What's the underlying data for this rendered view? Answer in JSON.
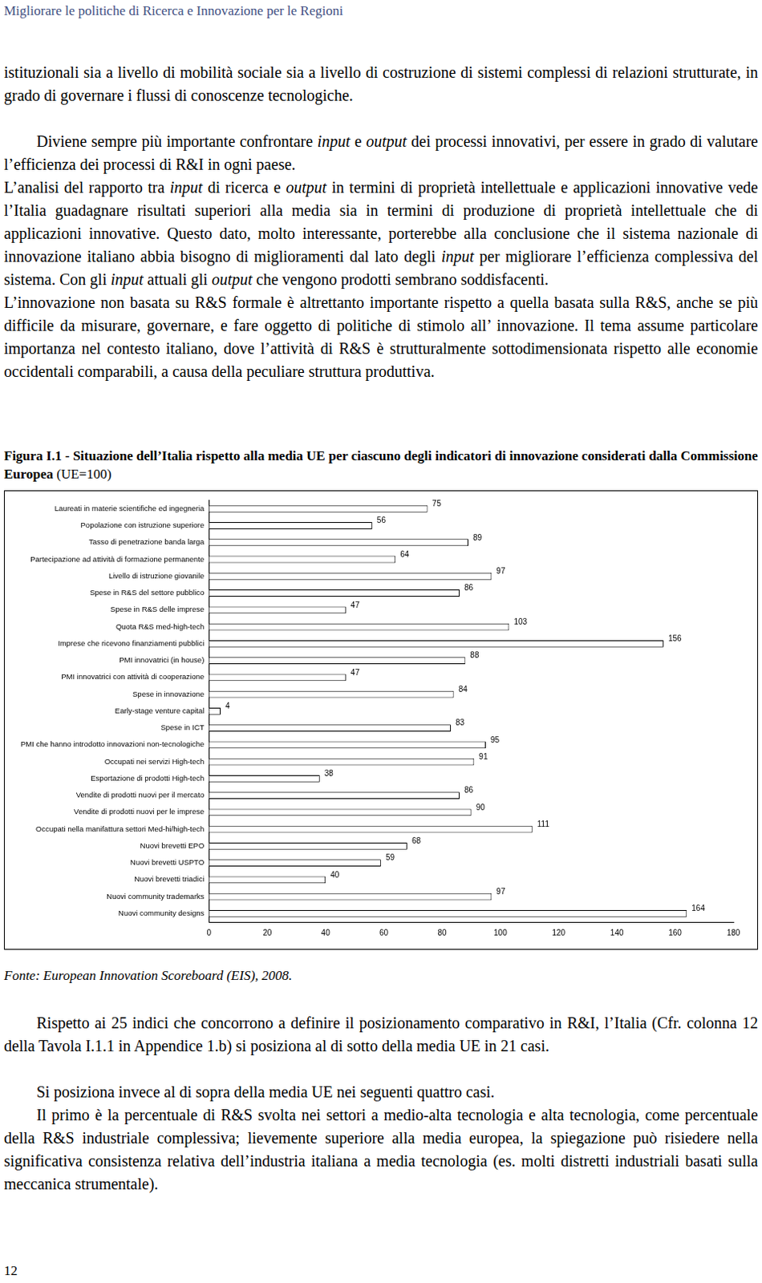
{
  "header": "Migliorare le politiche di Ricerca e Innovazione per le Regioni",
  "body_top": [
    [
      "istituzionali sia a livello di mobilità sociale sia a livello di costruzione di sistemi complessi di relazioni strutturate, in grado di governare i flussi di conoscenze tecnologiche."
    ],
    [
      "Diviene sempre più importante confrontare ",
      {
        "text": "input",
        "style": "italic"
      },
      " e ",
      {
        "text": "output",
        "style": "italic"
      },
      " dei processi innovativi, per essere in grado di valutare l’efficienza dei processi di R&I in ogni paese."
    ],
    [
      "L’analisi del rapporto tra ",
      {
        "text": "input",
        "style": "italic"
      },
      " di ricerca e ",
      {
        "text": "output",
        "style": "italic"
      },
      " in termini di proprietà intellettuale e applicazioni innovative vede l’Italia guadagnare risultati superiori alla media sia in termini di produzione di proprietà intellettuale che di applicazioni innovative. Questo dato, molto interessante, porterebbe alla conclusione che il sistema nazionale di innovazione italiano abbia bisogno di miglioramenti dal lato degli ",
      {
        "text": "input",
        "style": "italic"
      },
      " per migliorare l’efficienza complessiva del sistema. Con gli ",
      {
        "text": "input",
        "style": "italic"
      },
      " attuali gli ",
      {
        "text": "output",
        "style": "italic"
      },
      " che vengono prodotti sembrano soddisfacenti."
    ],
    [
      "L’innovazione non basata su R&S formale è altrettanto importante rispetto a quella basata sulla R&S, anche se più difficile da misurare, governare, e fare oggetto di politiche di stimolo all’ innovazione. Il tema assume particolare importanza nel contesto italiano, dove l’attività di R&S è strutturalmente sottodimensionata rispetto alle economie occidentali comparabili, a causa della peculiare struttura produttiva."
    ]
  ],
  "figure_caption": [
    {
      "text": "Figura I.1 - Situazione dell’Italia rispetto alla media UE per ciascuno degli indicatori di innovazione considerati dalla Commissione Europea",
      "style": "bold"
    },
    " (UE=100)"
  ],
  "chart_data": {
    "type": "bar",
    "orientation": "horizontal",
    "categories": [
      "Laureati in materie scientifiche ed ingegneria",
      "Popolazione con istruzione superiore",
      "Tasso di penetrazione banda larga",
      "Partecipazione ad attività di formazione permanente",
      "Livello di istruzione giovanile",
      "Spese in R&S del settore pubblico",
      "Spese in R&S delle imprese",
      "Quota R&S med-high-tech",
      "Imprese che ricevono finanziamenti pubblici",
      "PMI innovatrici (in house)",
      "PMI innovatrici con attività di cooperazione",
      "Spese in innovazione",
      "Early-stage venture capital",
      "Spese in ICT",
      "PMI che hanno introdotto innovazioni non-tecnologiche",
      "Occupati nei servizi High-tech",
      "Esportazione di prodotti High-tech",
      "Vendite di prodotti nuovi per il mercato",
      "Vendite di prodotti nuovi per le imprese",
      "Occupati nella manifattura settori Med-hi/high-tech",
      "Nuovi brevetti EPO",
      "Nuovi brevetti USPTO",
      "Nuovi brevetti triadici",
      "Nuovi community trademarks",
      "Nuovi community designs"
    ],
    "values": [
      75,
      56,
      89,
      64,
      97,
      86,
      47,
      103,
      156,
      88,
      47,
      84,
      4,
      83,
      95,
      91,
      38,
      86,
      90,
      111,
      68,
      59,
      40,
      97,
      164
    ],
    "color": "#ffffff",
    "xlim": [
      0,
      180
    ],
    "xticks": [
      0,
      20,
      40,
      60,
      80,
      100,
      120,
      140,
      160,
      180
    ],
    "grid": false,
    "data_labels": true
  },
  "source": "Fonte: European Innovation Scoreboard (EIS), 2008.",
  "body_bottom": [
    [
      "Rispetto ai 25 indici che concorrono a definire il posizionamento comparativo in R&I, l’Italia (Cfr. colonna 12 della Tavola I.1.1 in Appendice 1.b) si posiziona al di sotto della media UE in 21 casi."
    ],
    [
      "Si posiziona invece al di sopra della media UE nei seguenti quattro casi."
    ],
    [
      "Il primo è la percentuale di R&S svolta nei settori a medio-alta tecnologia e alta tecnologia, come percentuale della R&S industriale complessiva; lievemente superiore alla media europea, la spiegazione può risiedere nella significativa consistenza relativa dell’industria italiana a media tecnologia (es. molti distretti industriali basati sulla meccanica strumentale)."
    ]
  ],
  "page_number": "12"
}
